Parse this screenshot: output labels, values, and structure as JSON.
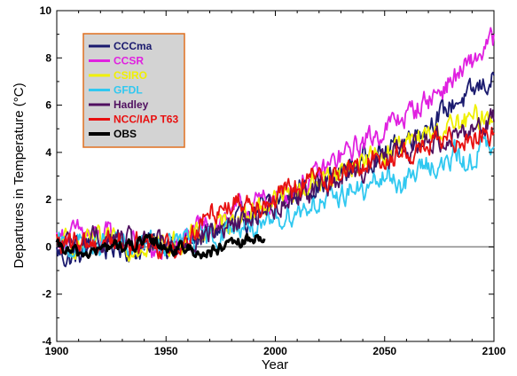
{
  "chart_data": {
    "type": "line",
    "xlabel": "Year",
    "ylabel": "Departures in Temperature  (°C)",
    "xlim": [
      1900,
      2100
    ],
    "ylim": [
      -4,
      10
    ],
    "xticks": [
      1900,
      1950,
      2000,
      2050,
      2100
    ],
    "yticks": [
      -4,
      -2,
      0,
      2,
      4,
      6,
      8,
      10
    ],
    "grid": false,
    "legend": "top-left",
    "reference_line": 0,
    "series": [
      {
        "name": "CCCma",
        "color": "#1a1a6e",
        "start_year": 1900,
        "end_year": 2100,
        "values": [
          -0.2,
          -0.5,
          -0.3,
          0.2,
          -0.1,
          0.1,
          -0.2,
          0.0,
          0.3,
          0.0,
          0.2,
          0.4,
          0.6,
          0.9,
          1.0,
          1.3,
          1.6,
          1.9,
          2.1,
          2.5,
          2.6,
          2.8,
          3.1,
          3.4,
          3.8,
          3.9,
          4.1,
          4.5,
          4.9,
          5.3,
          5.6,
          6.2,
          6.3,
          6.8,
          7.1
        ]
      },
      {
        "name": "CCSR",
        "color": "#e020e0",
        "start_year": 1900,
        "end_year": 2100,
        "values": [
          0.4,
          0.5,
          0.6,
          0.4,
          0.5,
          0.3,
          0.2,
          0.1,
          -0.4,
          0.0,
          0.3,
          0.7,
          1.0,
          1.2,
          1.5,
          1.7,
          1.9,
          2.1,
          2.3,
          2.6,
          2.9,
          3.3,
          3.8,
          4.1,
          4.5,
          4.8,
          5.2,
          5.5,
          5.9,
          6.3,
          6.7,
          7.2,
          7.6,
          8.2,
          8.8
        ]
      },
      {
        "name": "CSIRO",
        "color": "#f0f000",
        "start_year": 1900,
        "end_year": 2100,
        "values": [
          0.1,
          0.2,
          0.0,
          0.3,
          0.1,
          0.2,
          0.0,
          0.2,
          0.1,
          0.1,
          0.3,
          0.5,
          0.7,
          1.0,
          1.3,
          1.5,
          1.7,
          2.0,
          2.2,
          2.4,
          2.7,
          2.9,
          3.2,
          3.4,
          3.7,
          3.9,
          4.1,
          4.3,
          4.5,
          4.7,
          5.0,
          5.1,
          5.3,
          5.5,
          5.7
        ]
      },
      {
        "name": "GFDL",
        "color": "#30c8f0",
        "start_year": 1900,
        "end_year": 2100,
        "values": [
          0.1,
          -0.1,
          0.2,
          0.0,
          0.3,
          0.1,
          -0.1,
          0.2,
          0.0,
          0.1,
          0.3,
          0.2,
          0.4,
          0.6,
          0.9,
          1.0,
          0.5,
          1.2,
          1.4,
          1.6,
          1.9,
          1.8,
          2.2,
          2.5,
          2.3,
          2.8,
          3.0,
          2.6,
          3.2,
          3.6,
          3.3,
          3.9,
          3.4,
          4.3,
          4.0
        ]
      },
      {
        "name": "Hadley",
        "color": "#501060",
        "start_year": 1900,
        "end_year": 2100,
        "values": [
          0.0,
          0.3,
          0.1,
          0.4,
          0.2,
          0.3,
          0.1,
          0.0,
          0.2,
          -0.1,
          0.2,
          0.4,
          0.6,
          0.8,
          1.0,
          1.3,
          1.5,
          1.8,
          2.0,
          2.3,
          2.5,
          2.7,
          3.0,
          3.2,
          3.4,
          3.6,
          3.9,
          4.1,
          4.3,
          4.5,
          4.6,
          4.8,
          5.0,
          5.2,
          5.4
        ]
      },
      {
        "name": "NCC/IAP T63",
        "color": "#e81010",
        "start_year": 1900,
        "end_year": 2100,
        "values": [
          0.2,
          0.0,
          0.3,
          0.1,
          0.4,
          0.2,
          0.0,
          0.3,
          0.1,
          -0.2,
          0.4,
          0.8,
          1.5,
          1.8,
          1.9,
          2.0,
          1.9,
          2.1,
          2.3,
          2.6,
          2.9,
          3.0,
          3.1,
          3.3,
          3.5,
          3.7,
          3.8,
          4.0,
          4.1,
          4.3,
          4.4,
          4.6,
          4.7,
          4.8,
          4.9
        ]
      },
      {
        "name": "OBS",
        "color": "#000000",
        "start_year": 1900,
        "end_year": 1995,
        "values": [
          0.0,
          -0.2,
          -0.3,
          -0.2,
          -0.1,
          0.1,
          0.0,
          0.1,
          0.2,
          0.1,
          -0.1,
          0.0,
          -0.2,
          -0.3,
          -0.1,
          0.0,
          0.2,
          0.3,
          0.5
        ]
      }
    ]
  }
}
